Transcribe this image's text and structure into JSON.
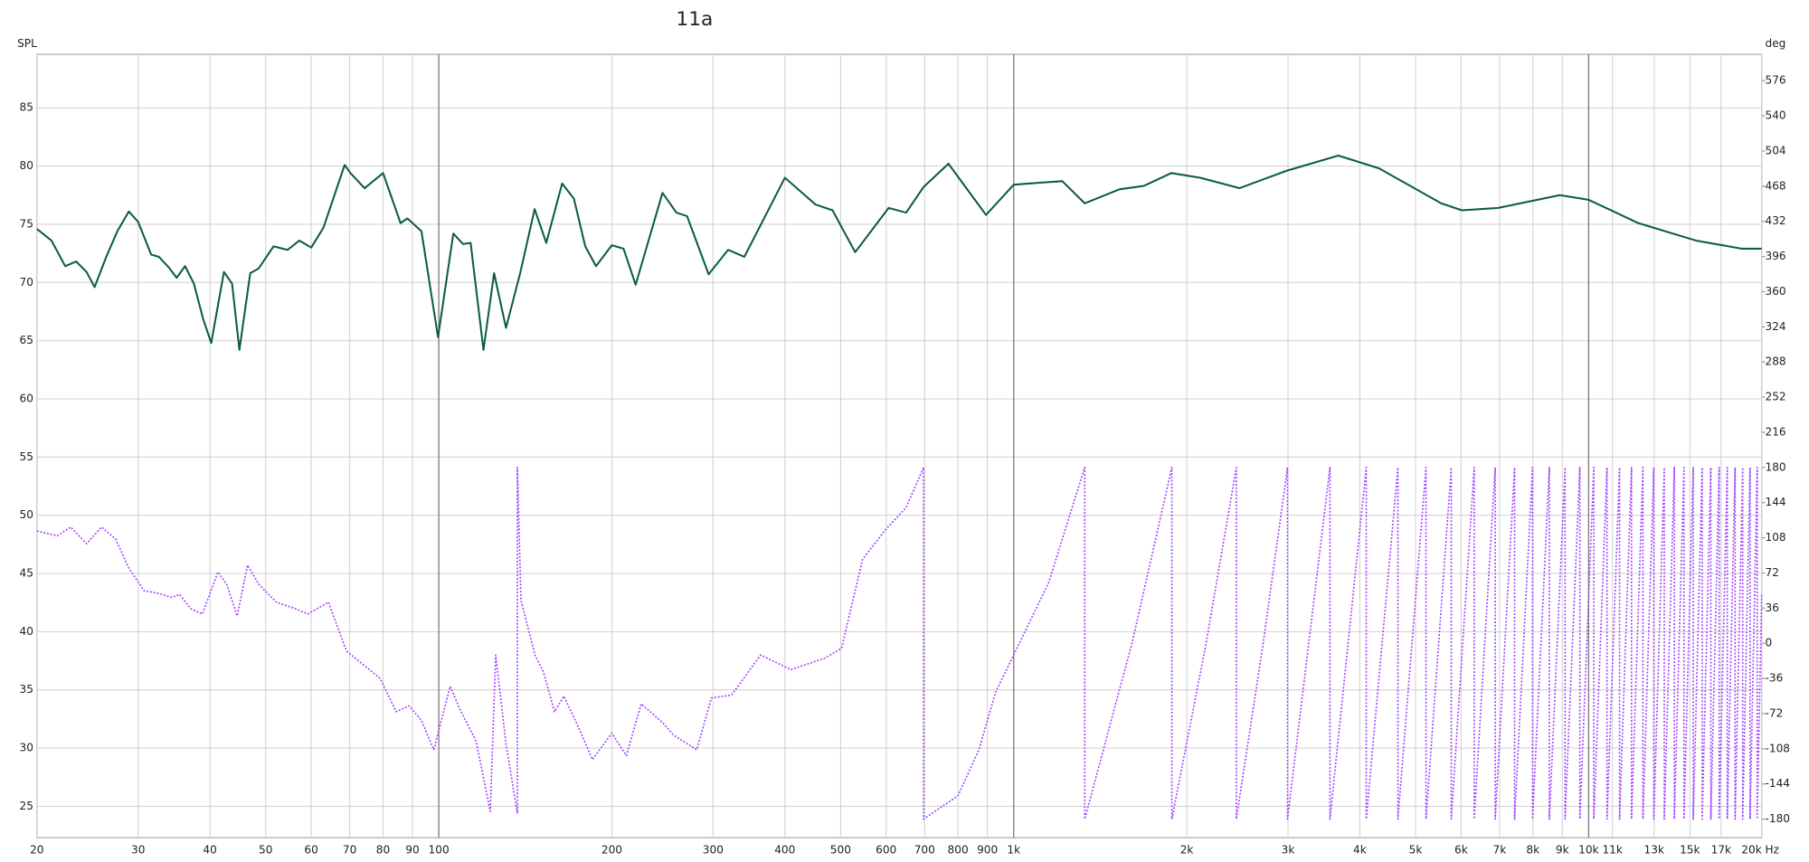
{
  "chart_data": {
    "type": "line",
    "title": "11a",
    "y_label": "SPL",
    "y2_label": "deg",
    "x_label": "Hz",
    "x_log": true,
    "grid": true,
    "xlim": [
      20,
      20000
    ],
    "ylim": [
      22.3,
      89.6
    ],
    "y2lim": [
      -199,
      603
    ],
    "xticks": [
      20,
      30,
      40,
      50,
      60,
      70,
      80,
      90,
      100,
      200,
      300,
      400,
      500,
      600,
      700,
      800,
      900,
      {
        "value": 1000,
        "label": "1k"
      },
      {
        "value": 2000,
        "label": "2k"
      },
      {
        "value": 3000,
        "label": "3k"
      },
      {
        "value": 4000,
        "label": "4k"
      },
      {
        "value": 5000,
        "label": "5k"
      },
      {
        "value": 6000,
        "label": "6k"
      },
      {
        "value": 7000,
        "label": "7k"
      },
      {
        "value": 8000,
        "label": "8k"
      },
      {
        "value": 9000,
        "label": "9k"
      },
      {
        "value": 10000,
        "label": "10k"
      },
      {
        "value": 11000,
        "label": "11k"
      },
      {
        "value": 13000,
        "label": "13k"
      },
      {
        "value": 15000,
        "label": "15k"
      },
      {
        "value": 17000,
        "label": "17k"
      },
      {
        "value": 20000,
        "label": "20k"
      }
    ],
    "yticks": [
      25,
      30,
      35,
      40,
      45,
      50,
      55,
      60,
      65,
      70,
      75,
      80,
      85
    ],
    "y2ticks": [
      -180,
      -144,
      -108,
      -72,
      -36,
      0,
      36,
      72,
      108,
      144,
      180,
      216,
      252,
      288,
      324,
      360,
      396,
      432,
      468,
      504,
      540,
      576
    ],
    "series": [
      {
        "color": "#0b5e37",
        "style": "solid",
        "x": [
          20,
          21.2,
          22.4,
          23.4,
          24.4,
          25.2,
          26.4,
          27.6,
          28.9,
          30,
          31.6,
          32.6,
          33.9,
          35,
          36.2,
          37.5,
          38.9,
          40.2,
          42.3,
          43.7,
          45,
          47,
          48.6,
          51.6,
          54.6,
          57.2,
          60,
          63,
          68.6,
          70.2,
          74.3,
          80,
          85.8,
          88.2,
          93.3,
          99.7,
          106,
          110.2,
          113.6,
          119.6,
          124.8,
          130.9,
          138.7,
          146.8,
          153.8,
          163.9,
          171.8,
          179.8,
          187.7,
          200,
          209.6,
          220,
          245,
          259,
          270.3,
          294.7,
          318.6,
          340,
          400,
          452,
          484,
          530,
          606,
          650,
          697,
          770,
          895,
          1000,
          1132,
          1215,
          1329,
          1527,
          1685,
          1880,
          2110,
          2470,
          2985,
          3670,
          4320,
          5540,
          6020,
          6960,
          8910,
          10000,
          12200,
          15370,
          18480,
          20000
        ],
        "values": [
          74.6,
          73.6,
          71.4,
          71.8,
          70.9,
          69.6,
          72.2,
          74.4,
          76.1,
          75.2,
          72.4,
          72.2,
          71.3,
          70.4,
          71.4,
          69.9,
          66.9,
          64.8,
          70.9,
          69.9,
          64.2,
          70.8,
          71.2,
          73.1,
          72.8,
          73.6,
          73.0,
          74.7,
          80.1,
          79.4,
          78.1,
          79.4,
          75.1,
          75.5,
          74.4,
          65.3,
          74.2,
          73.3,
          73.4,
          64.2,
          70.8,
          66.1,
          70.9,
          76.3,
          73.4,
          78.5,
          77.2,
          73.1,
          71.4,
          73.2,
          72.9,
          69.8,
          77.7,
          76.0,
          75.7,
          70.7,
          72.8,
          72.2,
          79.0,
          76.7,
          76.2,
          72.6,
          76.4,
          76.0,
          78.2,
          80.2,
          75.8,
          78.4,
          78.6,
          78.7,
          76.8,
          78.0,
          78.3,
          79.4,
          79.0,
          78.1,
          79.6,
          80.9,
          79.8,
          76.8,
          76.2,
          76.4,
          77.5,
          77.1,
          75.1,
          73.6,
          72.9,
          72.9
        ]
      },
      {
        "color": "#a040ff",
        "style": "dotted",
        "axis": "y2",
        "x": [
          20,
          21.7,
          22.9,
          24.4,
          25.9,
          27.4,
          28.9,
          30.7,
          32.6,
          34.3,
          35.4,
          37.1,
          38.8,
          41.3,
          42.8,
          44.6,
          46.5,
          48.7,
          52.2,
          56,
          59.2,
          64.3,
          69.1,
          74.3,
          79.1,
          84.3,
          88.8,
          93.3,
          98,
          104.7,
          109.1,
          116.1,
          122.9,
          125.6,
          130.9,
          137,
          137,
          139,
          147,
          152,
          159,
          165,
          175,
          185,
          200,
          212,
          225,
          245,
          256,
          281,
          298,
          323,
          363,
          410,
          470,
          502,
          546,
          600,
          650,
          697,
          697,
          800,
          870,
          930,
          1000,
          1150,
          1329,
          1329,
          1606,
          1884,
          1884,
          2161,
          2439,
          2439,
          2716,
          2994,
          2994,
          3549,
          3549,
          4104,
          4104,
          4659,
          4659,
          5214,
          5214,
          5769,
          5769,
          6324,
          6324,
          6879,
          6879,
          7434,
          7434,
          7989,
          7989,
          8544,
          8544,
          9099,
          9099,
          9654,
          9654,
          10209,
          10209,
          10764,
          10764,
          11319,
          11319,
          11874,
          11874,
          12429,
          12429,
          12984,
          12984,
          13539,
          13539,
          14094,
          14094,
          14649,
          14649,
          15204,
          15204,
          15759,
          15759,
          16314,
          16314,
          16869,
          16869,
          17424,
          17424,
          17979,
          17979,
          18534,
          18534,
          19089,
          19089,
          19644,
          19644,
          20000
        ],
        "values": [
          115,
          110,
          119,
          102,
          119,
          107,
          77,
          54,
          51,
          47,
          50,
          35,
          30,
          73,
          60,
          28,
          80,
          60,
          42,
          36,
          30,
          42,
          -8,
          -23,
          -36,
          -70,
          -64,
          -79,
          -109,
          -44,
          -69,
          -100,
          -172,
          -12,
          -103,
          -174,
          180,
          44,
          -12,
          -29,
          -70,
          -54,
          -86,
          -119,
          -92,
          -115,
          -62,
          -81,
          -94,
          -109,
          -56,
          -53,
          -12,
          -27,
          -15,
          -5,
          86,
          117,
          139,
          180,
          -180,
          -156,
          -109,
          -50,
          -12,
          62,
          180,
          -180,
          0,
          180,
          -180,
          0,
          180,
          -180,
          0,
          180,
          -180,
          180,
          -180,
          180,
          -180,
          180,
          -180,
          180,
          -180,
          180,
          -180,
          180,
          -180,
          180,
          -180,
          180,
          -180,
          180,
          -180,
          180,
          -180,
          180,
          -180,
          180,
          -180,
          180,
          -180,
          180,
          -180,
          180,
          -180,
          180,
          -180,
          180,
          -180,
          180,
          -180,
          180,
          -180,
          180,
          -180,
          180,
          -180,
          180,
          -180,
          180,
          -180,
          180,
          -180,
          180,
          -180,
          180,
          -180,
          180,
          -180,
          180,
          -180,
          180,
          -180,
          180,
          -180,
          51
        ]
      }
    ]
  }
}
